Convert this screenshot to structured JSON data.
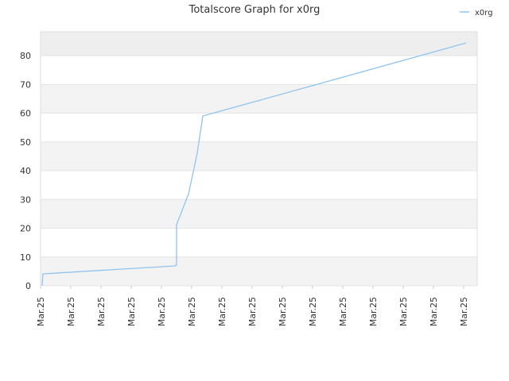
{
  "chart_data": {
    "type": "line",
    "title": "Totalscore Graph for x0rg",
    "x": [
      0.05,
      0.08,
      0.5,
      4.45,
      4.5,
      4.5,
      4.9,
      5.18,
      5.37,
      14.08
    ],
    "series": [
      {
        "name": "x0rg",
        "color": "#90c4f0",
        "values": [
          0,
          4.1,
          4.4,
          6.9,
          7.2,
          21.2,
          32,
          45.8,
          59,
          84.4
        ]
      }
    ],
    "xlim": [
      0,
      14.45
    ],
    "xticks": [
      {
        "value": 0,
        "label": "Mar.25"
      },
      {
        "value": 1,
        "label": "Mar.25"
      },
      {
        "value": 2,
        "label": "Mar.25"
      },
      {
        "value": 3,
        "label": "Mar.25"
      },
      {
        "value": 4,
        "label": "Mar.25"
      },
      {
        "value": 5,
        "label": "Mar.25"
      },
      {
        "value": 6,
        "label": "Mar.25"
      },
      {
        "value": 7,
        "label": "Mar.25"
      },
      {
        "value": 8,
        "label": "Mar.25"
      },
      {
        "value": 9,
        "label": "Mar.25"
      },
      {
        "value": 10,
        "label": "Mar.25"
      },
      {
        "value": 11,
        "label": "Mar.25"
      },
      {
        "value": 12,
        "label": "Mar.25"
      },
      {
        "value": 13,
        "label": "Mar.25"
      },
      {
        "value": 14,
        "label": "Mar.25"
      }
    ],
    "ylim": [
      0,
      88.3
    ],
    "yticks": [
      0,
      10,
      20,
      30,
      40,
      50,
      60,
      70,
      80
    ],
    "grid": true,
    "legend": "top-right"
  }
}
